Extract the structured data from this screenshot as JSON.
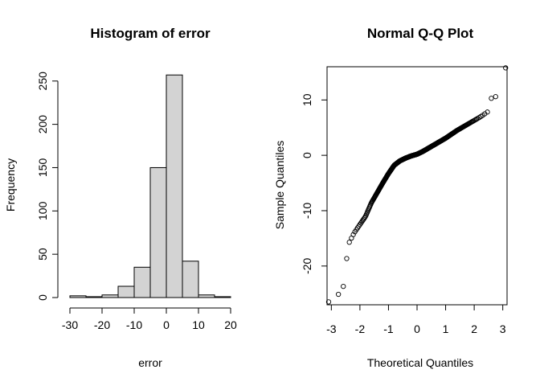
{
  "chart_data": [
    {
      "type": "bar",
      "title": "Histogram of error",
      "xlabel": "error",
      "ylabel": "Frequency",
      "bin_edges": [
        -30,
        -25,
        -20,
        -15,
        -10,
        -5,
        0,
        5,
        10,
        15,
        20
      ],
      "values": [
        2,
        1,
        3,
        13,
        35,
        150,
        257,
        42,
        3,
        1
      ],
      "xlim": [
        -30,
        20
      ],
      "ylim": [
        0,
        260
      ],
      "xticks": [
        -30,
        -20,
        -10,
        0,
        10,
        20
      ],
      "yticks": [
        0,
        50,
        100,
        150,
        200,
        250
      ],
      "grid": false
    },
    {
      "type": "scatter",
      "title": "Normal Q-Q Plot",
      "xlabel": "Theoretical Quantiles",
      "ylabel": "Sample Quantiles",
      "n_points": 507,
      "xlim": [
        -3.15,
        3.15
      ],
      "ylim": [
        -27,
        16
      ],
      "xticks": [
        -3,
        -2,
        -1,
        0,
        1,
        2,
        3
      ],
      "yticks": [
        -20,
        -10,
        0,
        10
      ],
      "curve_knots": {
        "x": [
          -3.1,
          -2.8,
          -2.6,
          -2.4,
          -2.2,
          -2.0,
          -1.8,
          -1.6,
          -1.4,
          -1.2,
          -1.0,
          -0.8,
          -0.6,
          -0.4,
          -0.2,
          0.0,
          0.2,
          0.4,
          0.6,
          0.8,
          1.0,
          1.2,
          1.4,
          1.6,
          1.8,
          2.0,
          2.2,
          2.4
        ],
        "y": [
          -26.5,
          -25.3,
          -24.5,
          -16.0,
          -14.0,
          -12.5,
          -11.0,
          -8.6,
          -6.8,
          -5.0,
          -3.3,
          -1.8,
          -1.0,
          -0.5,
          -0.1,
          0.2,
          0.7,
          1.3,
          1.9,
          2.5,
          3.1,
          3.8,
          4.5,
          5.1,
          5.7,
          6.3,
          6.9,
          7.6
        ]
      },
      "outliers": [
        {
          "x": 2.6,
          "y": 10.3
        },
        {
          "x": 2.75,
          "y": 10.6
        },
        {
          "x": 3.1,
          "y": 15.8
        }
      ],
      "grid": false
    }
  ]
}
